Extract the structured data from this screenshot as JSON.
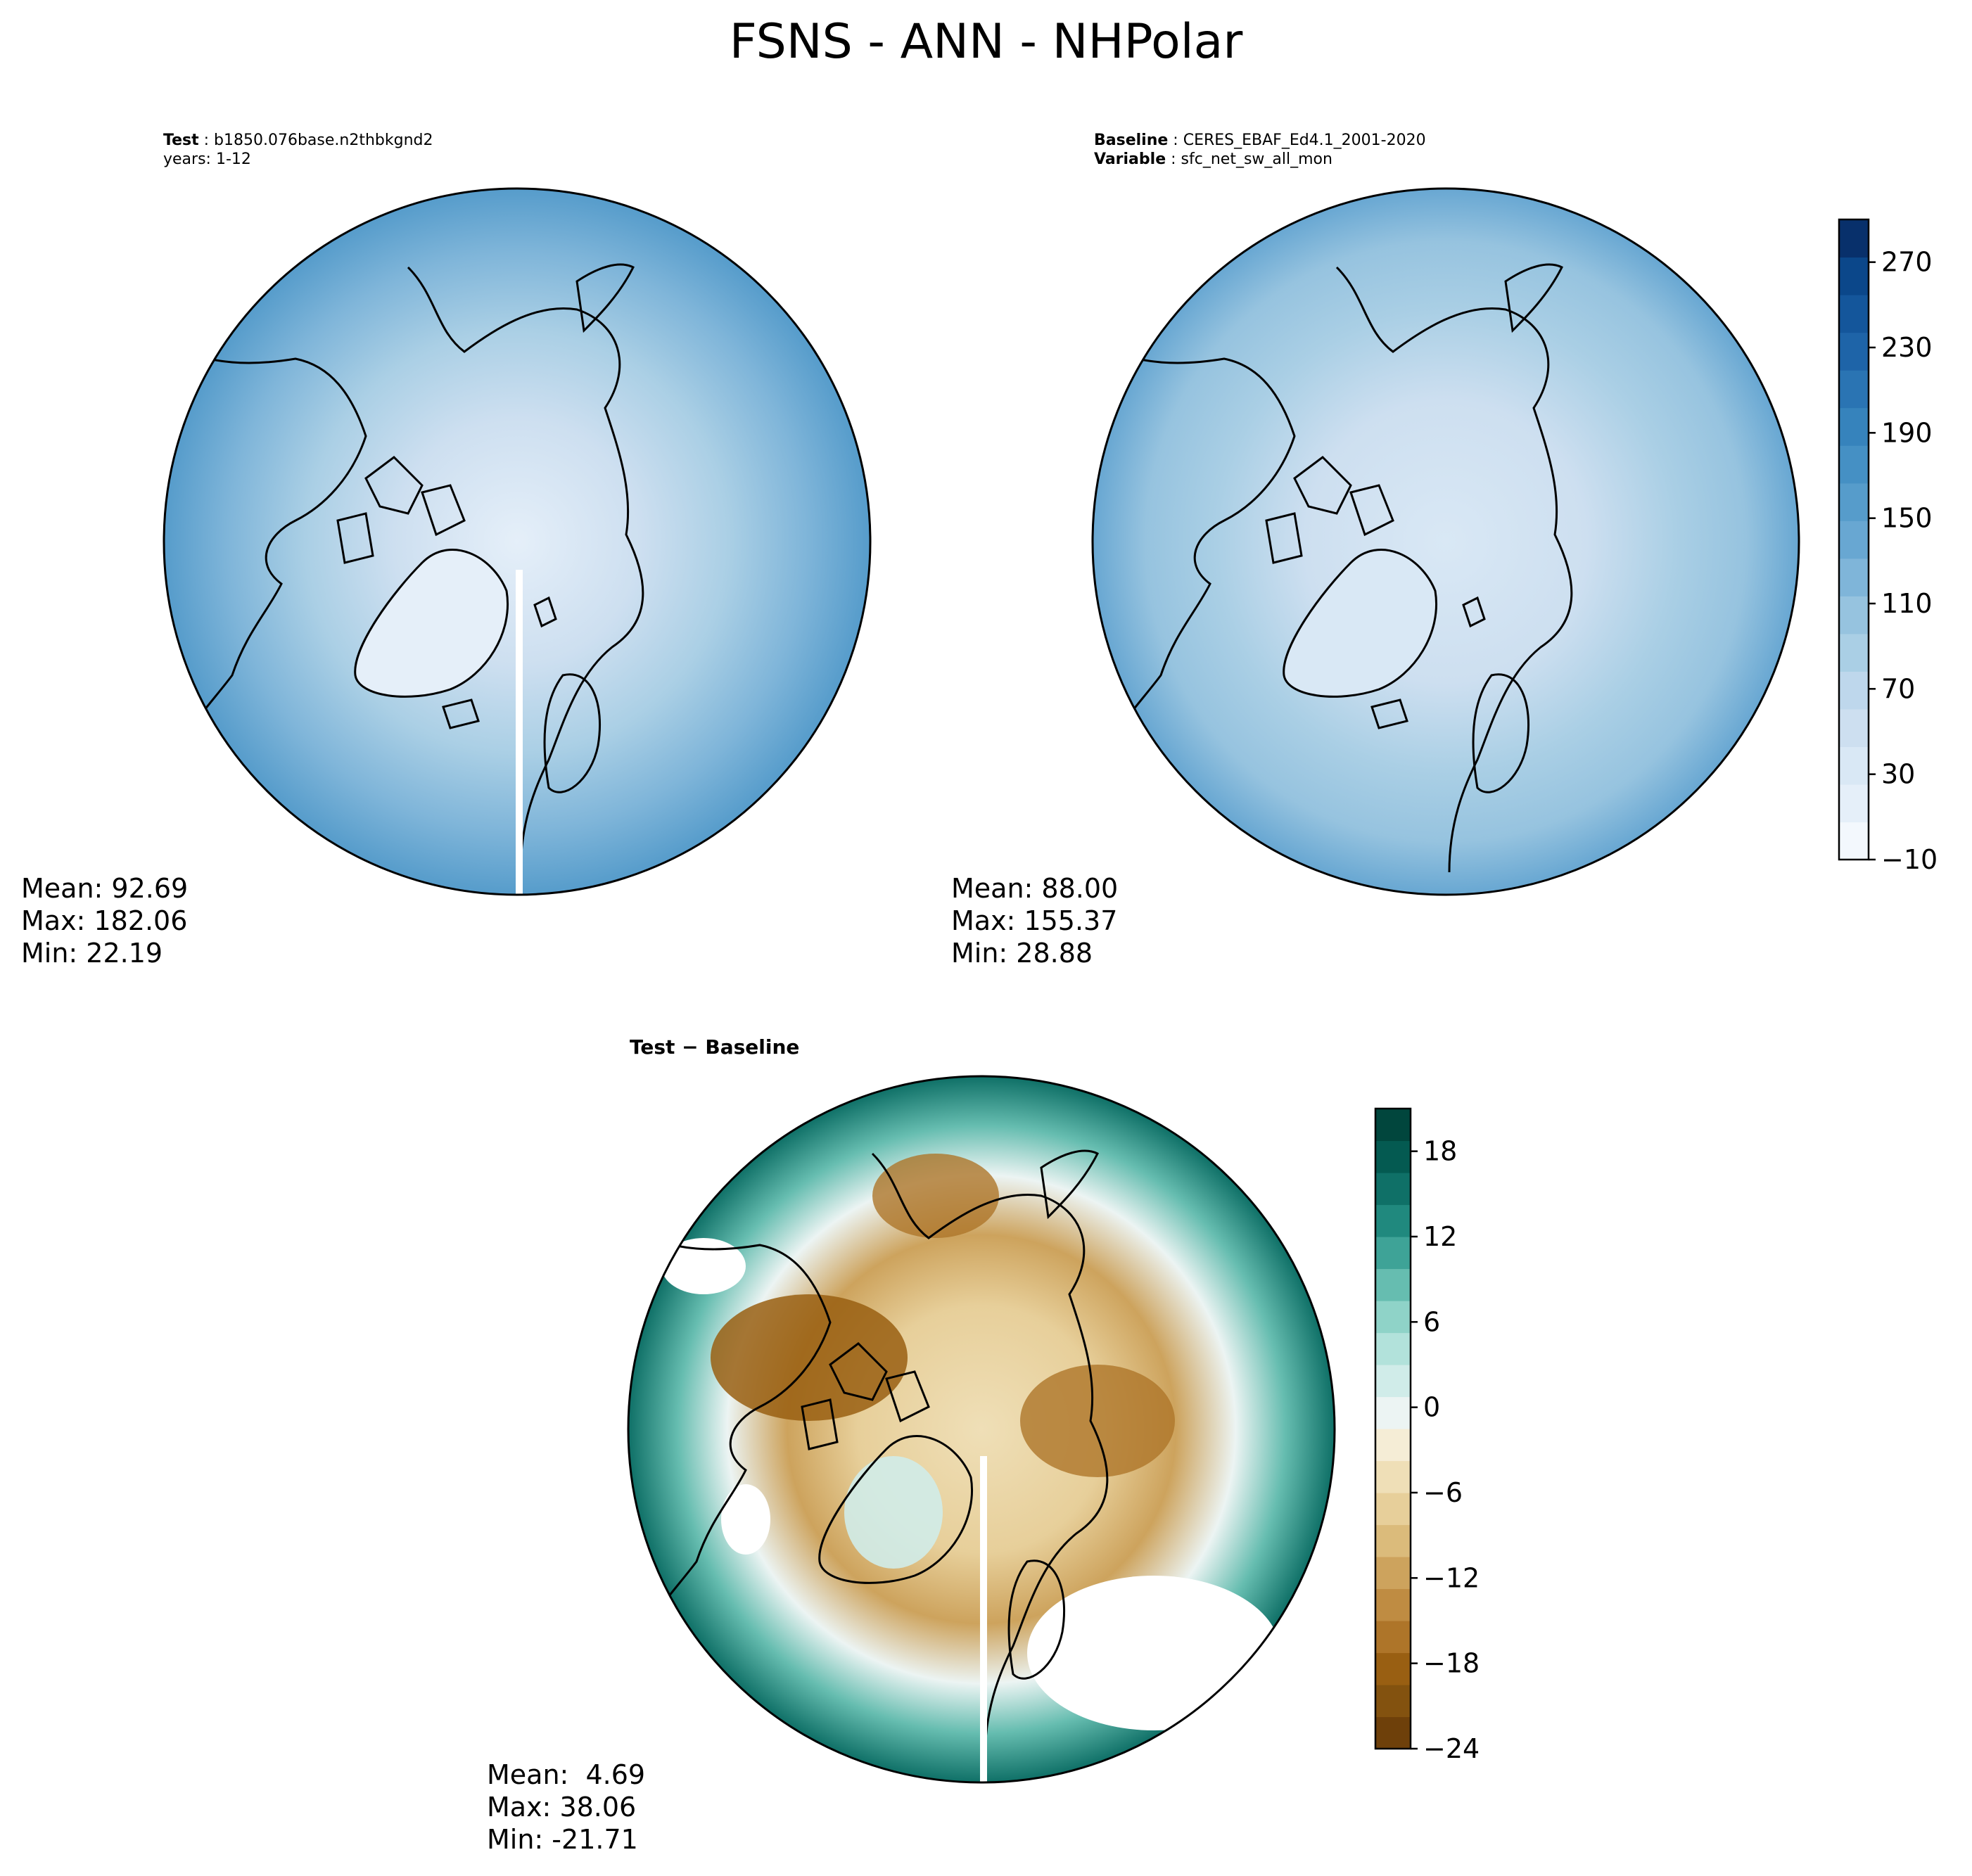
{
  "title": "FSNS - ANN - NHPolar",
  "colors": {
    "blues": [
      "#f3f8fd",
      "#e5eff9",
      "#d9e8f5",
      "#cddff0",
      "#bed7ec",
      "#aacfe5",
      "#96c3df",
      "#7fb5d9",
      "#68a7d2",
      "#569ccb",
      "#4590c4",
      "#3683bc",
      "#2a74b3",
      "#1e64a8",
      "#14569b",
      "#0b478a",
      "#08306b"
    ],
    "diverging": [
      "#6e400a",
      "#83520f",
      "#995f12",
      "#ae7529",
      "#bf8c42",
      "#cda35d",
      "#dbbb7b",
      "#e7cf9a",
      "#efdfb7",
      "#f5edd6",
      "#ecf4f3",
      "#d0ece9",
      "#b2e2db",
      "#8fd3c8",
      "#66bdb0",
      "#3ea397",
      "#20897e",
      "#0f7067",
      "#045a51",
      "#01463d"
    ],
    "coastline": "#000000"
  },
  "panels": {
    "test": {
      "header_label": "Test",
      "header_value": "b1850.076base.n2thbkgnd2",
      "header_line2": "years: 1-12",
      "mean": "Mean: 92.69",
      "max": "Max: 182.06",
      "min": "Min: 22.19"
    },
    "baseline": {
      "header_label": "Baseline",
      "header_value": "CERES_EBAF_Ed4.1_2001-2020",
      "header_label2": "Variable",
      "header_value2": "sfc_net_sw_all_mon",
      "mean": "Mean: 88.00",
      "max": "Max: 155.37",
      "min": "Min: 28.88"
    },
    "diff": {
      "title": "Test − Baseline",
      "mean": "Mean:  4.69",
      "max": "Max: 38.06",
      "min": "Min: -21.71"
    }
  },
  "chart_data": [
    {
      "type": "heatmap",
      "projection": "north-polar-stereographic",
      "series": [
        {
          "name": "Test",
          "mean": 92.69,
          "max": 182.06,
          "min": 22.19
        },
        {
          "name": "Baseline",
          "mean": 88.0,
          "max": 155.37,
          "min": 28.88
        }
      ],
      "colorbar": {
        "range": [
          -10,
          290
        ],
        "tick_values": [
          -10,
          30,
          70,
          110,
          150,
          190,
          230,
          270
        ],
        "tick_labels": [
          "−10",
          "30",
          "70",
          "110",
          "150",
          "190",
          "230",
          "270"
        ]
      }
    },
    {
      "type": "heatmap",
      "projection": "north-polar-stereographic",
      "series": [
        {
          "name": "Test − Baseline",
          "mean": 4.69,
          "max": 38.06,
          "min": -21.71
        }
      ],
      "colorbar": {
        "range": [
          -24,
          21
        ],
        "tick_values": [
          -24,
          -18,
          -12,
          -6,
          0,
          6,
          12,
          18
        ],
        "tick_labels": [
          "−24",
          "−18",
          "−12",
          "−6",
          "0",
          "6",
          "12",
          "18"
        ]
      }
    }
  ]
}
